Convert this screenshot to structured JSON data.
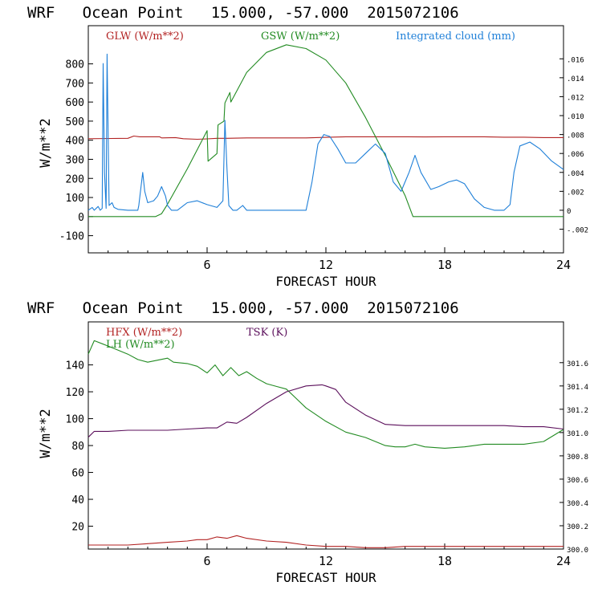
{
  "chart_data": [
    {
      "type": "line",
      "title": "WRF   Ocean Point   15.000, -57.000  2015072106",
      "xlabel": "FORECAST HOUR",
      "ylabel": "W/m**2",
      "x_range": [
        0,
        24
      ],
      "x_ticks": [
        "6",
        "12",
        "18",
        "24"
      ],
      "y_left_range": [
        -190,
        1000
      ],
      "y_left_ticks": [
        "-100",
        "0",
        "100",
        "200",
        "300",
        "400",
        "500",
        "600",
        "700",
        "800"
      ],
      "y_right_range": [
        -0.0045,
        0.0195
      ],
      "y_right_ticks": [
        "-.002",
        "0",
        ".002",
        ".004",
        ".006",
        ".008",
        ".010",
        ".012",
        ".014",
        ".016"
      ],
      "series": [
        {
          "name": "GLW (W/m**2)",
          "color": "#b22222",
          "axis": "left",
          "points": [
            [
              0,
              408
            ],
            [
              2,
              410
            ],
            [
              2.3,
              422
            ],
            [
              2.6,
              418
            ],
            [
              3.6,
              418
            ],
            [
              3.7,
              412
            ],
            [
              4.4,
              414
            ],
            [
              4.8,
              408
            ],
            [
              5.5,
              405
            ],
            [
              6,
              407
            ],
            [
              6.5,
              410
            ],
            [
              7,
              410
            ],
            [
              8,
              412
            ],
            [
              9,
              412
            ],
            [
              10,
              412
            ],
            [
              11,
              412
            ],
            [
              12,
              415
            ],
            [
              13,
              418
            ],
            [
              14,
              418
            ],
            [
              15,
              418
            ],
            [
              16,
              418
            ],
            [
              17,
              417
            ],
            [
              18,
              418
            ],
            [
              19,
              418
            ],
            [
              20,
              418
            ],
            [
              21,
              416
            ],
            [
              22,
              416
            ],
            [
              23,
              414
            ],
            [
              24,
              414
            ]
          ]
        },
        {
          "name": "GSW (W/m**2)",
          "color": "#228b22",
          "axis": "left",
          "points": [
            [
              0,
              0
            ],
            [
              3.4,
              0
            ],
            [
              3.7,
              15
            ],
            [
              4.0,
              65
            ],
            [
              5.0,
              250
            ],
            [
              6.0,
              450
            ],
            [
              6.05,
              290
            ],
            [
              6.5,
              330
            ],
            [
              6.55,
              480
            ],
            [
              6.85,
              500
            ],
            [
              6.9,
              595
            ],
            [
              7.15,
              650
            ],
            [
              7.2,
              600
            ],
            [
              8,
              755
            ],
            [
              9,
              860
            ],
            [
              10,
              900
            ],
            [
              11,
              880
            ],
            [
              12,
              820
            ],
            [
              13,
              700
            ],
            [
              14,
              520
            ],
            [
              15,
              320
            ],
            [
              16,
              110
            ],
            [
              16.4,
              0
            ],
            [
              24,
              0
            ]
          ]
        },
        {
          "name": "Integrated cloud (mm)",
          "color": "#1e7fd8",
          "axis": "right",
          "points": [
            [
              0,
              0
            ],
            [
              0.2,
              0.0003
            ],
            [
              0.3,
              0
            ],
            [
              0.5,
              0.0004
            ],
            [
              0.6,
              0
            ],
            [
              0.7,
              0.0002
            ],
            [
              0.75,
              0.0155
            ],
            [
              0.82,
              0.004
            ],
            [
              0.9,
              0.0002
            ],
            [
              0.95,
              0.0165
            ],
            [
              1.05,
              0.0005
            ],
            [
              1.2,
              0.0008
            ],
            [
              1.3,
              0.0003
            ],
            [
              1.5,
              0.0001
            ],
            [
              2.0,
              0
            ],
            [
              2.5,
              0
            ],
            [
              2.55,
              0.0005
            ],
            [
              2.75,
              0.004
            ],
            [
              2.85,
              0.002
            ],
            [
              3.0,
              0.0008
            ],
            [
              3.3,
              0.001
            ],
            [
              3.5,
              0.0015
            ],
            [
              3.7,
              0.0025
            ],
            [
              3.9,
              0.0015
            ],
            [
              4.0,
              0.0005
            ],
            [
              4.2,
              0
            ],
            [
              4.5,
              0
            ],
            [
              5.0,
              0.0008
            ],
            [
              5.5,
              0.001
            ],
            [
              6.0,
              0.0006
            ],
            [
              6.5,
              0.0003
            ],
            [
              6.8,
              0.001
            ],
            [
              6.9,
              0.0095
            ],
            [
              7.0,
              0.0045
            ],
            [
              7.1,
              0.0005
            ],
            [
              7.3,
              0
            ],
            [
              7.5,
              0
            ],
            [
              7.8,
              0.0005
            ],
            [
              8.0,
              0
            ],
            [
              11,
              0
            ],
            [
              11.3,
              0.003
            ],
            [
              11.6,
              0.007
            ],
            [
              11.9,
              0.008
            ],
            [
              12.2,
              0.0078
            ],
            [
              12.6,
              0.0065
            ],
            [
              13.0,
              0.005
            ],
            [
              13.5,
              0.005
            ],
            [
              14.0,
              0.006
            ],
            [
              14.5,
              0.007
            ],
            [
              15.0,
              0.006
            ],
            [
              15.4,
              0.003
            ],
            [
              15.8,
              0.002
            ],
            [
              16.2,
              0.004
            ],
            [
              16.5,
              0.0058
            ],
            [
              16.8,
              0.004
            ],
            [
              17.3,
              0.0022
            ],
            [
              17.7,
              0.0025
            ],
            [
              18.2,
              0.003
            ],
            [
              18.6,
              0.0032
            ],
            [
              19.0,
              0.0028
            ],
            [
              19.5,
              0.0012
            ],
            [
              20.0,
              0.0003
            ],
            [
              20.5,
              0
            ],
            [
              21.0,
              0
            ],
            [
              21.3,
              0.0006
            ],
            [
              21.5,
              0.004
            ],
            [
              21.8,
              0.0068
            ],
            [
              22.3,
              0.0072
            ],
            [
              22.8,
              0.0065
            ],
            [
              23.4,
              0.0052
            ],
            [
              24,
              0.0043
            ]
          ]
        }
      ]
    },
    {
      "type": "line",
      "title": "WRF   Ocean Point   15.000, -57.000  2015072106",
      "xlabel": "FORECAST HOUR",
      "ylabel": "W/m**2",
      "x_range": [
        0,
        24
      ],
      "x_ticks": [
        "6",
        "12",
        "18",
        "24"
      ],
      "y_left_range": [
        3,
        172
      ],
      "y_left_ticks": [
        "20",
        "40",
        "60",
        "80",
        "100",
        "120",
        "140"
      ],
      "y_right_range": [
        300.0,
        301.95
      ],
      "y_right_ticks": [
        "300.0",
        "300.2",
        "300.4",
        "300.6",
        "300.8",
        "301.0",
        "301.2",
        "301.4",
        "301.6"
      ],
      "series": [
        {
          "name": "HFX (W/m**2)",
          "color": "#b22222",
          "axis": "left",
          "points": [
            [
              0,
              6
            ],
            [
              2,
              6
            ],
            [
              3,
              7
            ],
            [
              4,
              8
            ],
            [
              5,
              9
            ],
            [
              5.5,
              10
            ],
            [
              6,
              10
            ],
            [
              6.5,
              12
            ],
            [
              7,
              11
            ],
            [
              7.5,
              13
            ],
            [
              8,
              11
            ],
            [
              9,
              9
            ],
            [
              10,
              8
            ],
            [
              11,
              6
            ],
            [
              12,
              5
            ],
            [
              13,
              5
            ],
            [
              14,
              4
            ],
            [
              15,
              4
            ],
            [
              16,
              5
            ],
            [
              17,
              5
            ],
            [
              18,
              5
            ],
            [
              19,
              5
            ],
            [
              20,
              5
            ],
            [
              21,
              5
            ],
            [
              22,
              5
            ],
            [
              23,
              5
            ],
            [
              24,
              5
            ]
          ]
        },
        {
          "name": "LH  (W/m**2)",
          "color": "#228b22",
          "axis": "left",
          "points": [
            [
              0,
              148
            ],
            [
              0.3,
              158
            ],
            [
              1,
              154
            ],
            [
              2,
              148
            ],
            [
              2.5,
              144
            ],
            [
              3,
              142
            ],
            [
              4,
              145
            ],
            [
              4.3,
              142
            ],
            [
              5,
              141
            ],
            [
              5.5,
              139
            ],
            [
              6,
              134
            ],
            [
              6.4,
              140
            ],
            [
              6.8,
              132
            ],
            [
              7.2,
              138
            ],
            [
              7.6,
              132
            ],
            [
              8,
              135
            ],
            [
              8.5,
              130
            ],
            [
              9,
              126
            ],
            [
              9.5,
              124
            ],
            [
              10,
              122
            ],
            [
              10.5,
              115
            ],
            [
              11,
              108
            ],
            [
              12,
              98
            ],
            [
              13,
              90
            ],
            [
              14,
              86
            ],
            [
              15,
              80
            ],
            [
              15.5,
              79
            ],
            [
              16,
              79
            ],
            [
              16.5,
              81
            ],
            [
              17,
              79
            ],
            [
              18,
              78
            ],
            [
              19,
              79
            ],
            [
              20,
              81
            ],
            [
              21,
              81
            ],
            [
              22,
              81
            ],
            [
              23,
              83
            ],
            [
              24,
              92
            ]
          ]
        },
        {
          "name": "TSK (K)",
          "color": "#5b0f5b",
          "axis": "right",
          "points": [
            [
              0,
              300.96
            ],
            [
              0.3,
              301.01
            ],
            [
              1,
              301.01
            ],
            [
              2,
              301.02
            ],
            [
              3,
              301.02
            ],
            [
              4,
              301.02
            ],
            [
              5,
              301.03
            ],
            [
              6,
              301.04
            ],
            [
              6.5,
              301.04
            ],
            [
              7,
              301.09
            ],
            [
              7.5,
              301.08
            ],
            [
              8,
              301.13
            ],
            [
              9,
              301.25
            ],
            [
              10,
              301.35
            ],
            [
              11,
              301.4
            ],
            [
              11.8,
              301.41
            ],
            [
              12,
              301.4
            ],
            [
              12.5,
              301.37
            ],
            [
              13,
              301.26
            ],
            [
              14,
              301.15
            ],
            [
              15,
              301.07
            ],
            [
              16,
              301.06
            ],
            [
              17,
              301.06
            ],
            [
              18,
              301.06
            ],
            [
              19,
              301.06
            ],
            [
              20,
              301.06
            ],
            [
              21,
              301.06
            ],
            [
              22,
              301.05
            ],
            [
              23,
              301.05
            ],
            [
              24,
              301.03
            ]
          ]
        }
      ]
    }
  ]
}
